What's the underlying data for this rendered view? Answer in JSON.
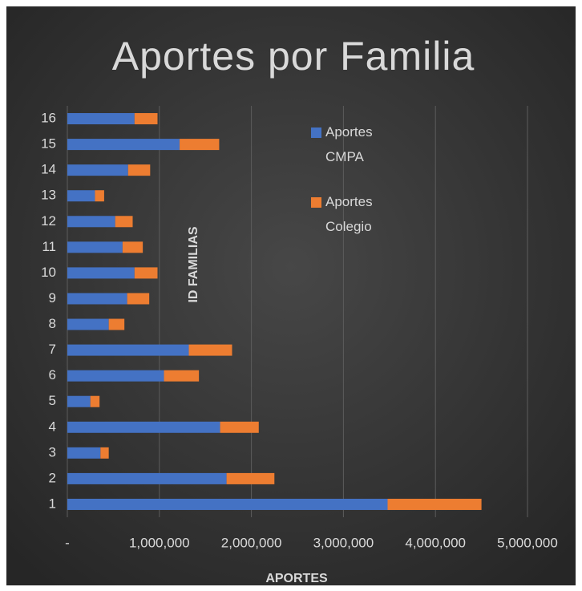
{
  "chart_data": {
    "type": "stacked-barh",
    "title": "Aportes por Familia",
    "x_label": "APORTES",
    "y_label": "ID FAMILIAS",
    "categories": [
      "1",
      "2",
      "3",
      "4",
      "5",
      "6",
      "7",
      "8",
      "9",
      "10",
      "11",
      "12",
      "13",
      "14",
      "15",
      "16"
    ],
    "series": [
      {
        "name": "Aportes CMPA",
        "color": "#4472c4",
        "values": [
          3480000,
          1730000,
          360000,
          1660000,
          250000,
          1050000,
          1320000,
          450000,
          650000,
          730000,
          600000,
          520000,
          300000,
          660000,
          1220000,
          730000
        ]
      },
      {
        "name": "Aportes Colegio",
        "color": "#ed7d31",
        "values": [
          1020000,
          520000,
          90000,
          420000,
          100000,
          380000,
          470000,
          170000,
          240000,
          250000,
          220000,
          190000,
          100000,
          240000,
          430000,
          250000
        ]
      }
    ],
    "xlim": [
      0,
      5000000
    ],
    "xticks": [
      {
        "value": 0,
        "label": "-"
      },
      {
        "value": 1000000,
        "label": "1,000,000"
      },
      {
        "value": 2000000,
        "label": "2,000,000"
      },
      {
        "value": 3000000,
        "label": "3,000,000"
      },
      {
        "value": 4000000,
        "label": "4,000,000"
      },
      {
        "value": 5000000,
        "label": "5,000,000"
      }
    ],
    "grid": true,
    "legend": "upper right"
  }
}
